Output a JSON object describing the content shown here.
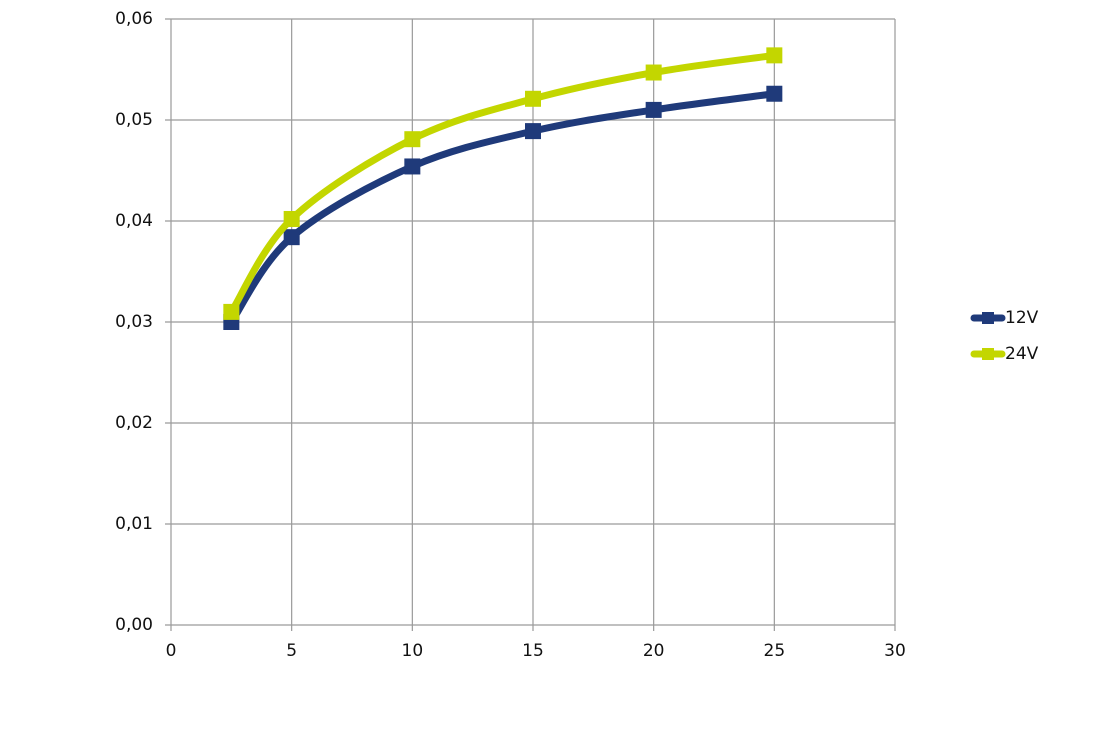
{
  "chart_data": {
    "type": "line",
    "x": [
      2.5,
      5,
      10,
      15,
      20,
      25
    ],
    "series": [
      {
        "name": "12V",
        "color": "#1f3a7a",
        "values": [
          0.03,
          0.0384,
          0.0454,
          0.0489,
          0.051,
          0.0526
        ]
      },
      {
        "name": "24V",
        "color": "#c3d600",
        "values": [
          0.031,
          0.0402,
          0.0481,
          0.0521,
          0.0547,
          0.0564
        ]
      }
    ],
    "xlim": [
      0,
      30
    ],
    "xticks": [
      0,
      5,
      10,
      15,
      20,
      25,
      30
    ],
    "ylim": [
      0,
      0.06
    ],
    "yticks": [
      {
        "value": 0,
        "label": "0,00"
      },
      {
        "value": 0.01,
        "label": "0,01"
      },
      {
        "value": 0.02,
        "label": "0,02"
      },
      {
        "value": 0.03,
        "label": "0,03"
      },
      {
        "value": 0.04,
        "label": "0,04"
      },
      {
        "value": 0.05,
        "label": "0,05"
      },
      {
        "value": 0.06,
        "label": "0,06"
      }
    ],
    "grid": true,
    "legend": "right",
    "smooth": true
  }
}
